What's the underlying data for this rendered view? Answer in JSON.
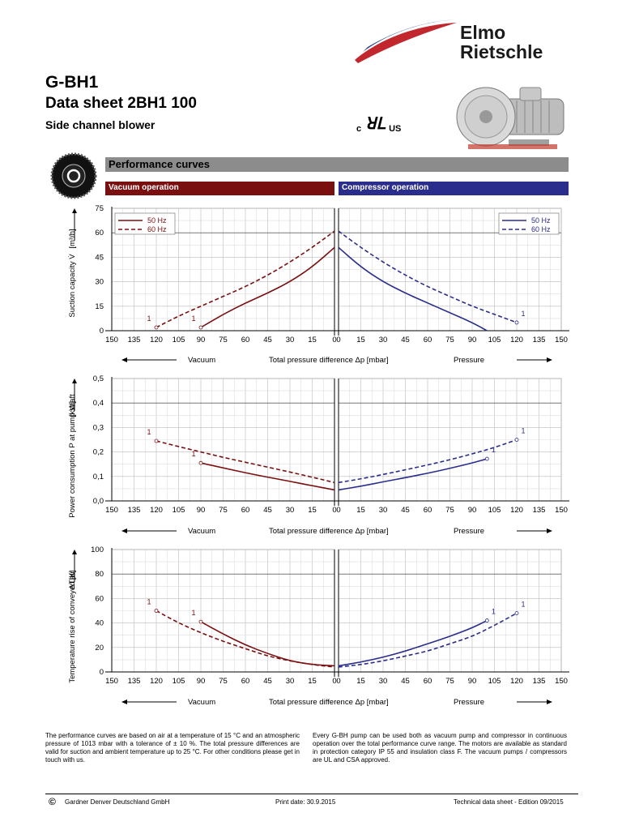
{
  "header": {
    "code": "G-BH1",
    "datasheet": "Data sheet 2BH1 100",
    "product": "Side channel blower",
    "brand_line1": "Elmo",
    "brand_line2": "Rietschle",
    "cert_prefix": "c",
    "cert_suffix": "US"
  },
  "section": {
    "title": "Performance curves",
    "vacuum_label": "Vacuum operation",
    "compressor_label": "Compressor operation"
  },
  "colors": {
    "vacuum": "#7a0f10",
    "compressor": "#2b2d8c",
    "band": "#8c8c8c"
  },
  "chart_data": [
    {
      "type": "line",
      "title": "Suction capacity",
      "ylabel": "Suction capacity V̇   [m³/h]",
      "xlabel": "Total pressure difference Δp [mbar]",
      "left_label": "Vacuum",
      "right_label": "Pressure",
      "ylim": [
        0,
        75
      ],
      "yticks": [
        "0",
        "15",
        "30",
        "45",
        "60",
        "75"
      ],
      "xticks_left": [
        "150",
        "135",
        "120",
        "105",
        "90",
        "75",
        "60",
        "45",
        "30",
        "15",
        "0"
      ],
      "xticks_right": [
        "0",
        "15",
        "30",
        "45",
        "60",
        "75",
        "90",
        "105",
        "120",
        "135",
        "150"
      ],
      "legend_position": "top",
      "vacuum_series": [
        {
          "name": "50 Hz",
          "style": "solid",
          "x": [
            90,
            75,
            60,
            45,
            30,
            15,
            0
          ],
          "y": [
            2,
            10,
            17,
            23,
            30,
            39,
            51
          ]
        },
        {
          "name": "60 Hz",
          "style": "dashed",
          "x": [
            120,
            105,
            90,
            75,
            60,
            45,
            30,
            15,
            0
          ],
          "y": [
            2,
            9,
            15,
            21,
            27,
            34,
            42,
            51,
            61
          ]
        }
      ],
      "compressor_series": [
        {
          "name": "50 Hz",
          "style": "solid",
          "x": [
            0,
            15,
            30,
            45,
            60,
            75,
            90,
            100
          ],
          "y": [
            51,
            39,
            30,
            23,
            17,
            11,
            5,
            0
          ]
        },
        {
          "name": "60 Hz",
          "style": "dashed",
          "x": [
            0,
            15,
            30,
            45,
            60,
            75,
            90,
            105,
            120
          ],
          "y": [
            61,
            51,
            42,
            34,
            27,
            21,
            15,
            10,
            5
          ]
        }
      ],
      "markers": [
        {
          "side": "vacuum",
          "x": 120,
          "y": 2,
          "label": "1"
        },
        {
          "side": "vacuum",
          "x": 90,
          "y": 2,
          "label": "1"
        },
        {
          "side": "compressor",
          "x": 120,
          "y": 5,
          "label": "1"
        }
      ]
    },
    {
      "type": "line",
      "title": "Power consumption",
      "ylabel": "Power consumption P at pump shaft   [kW]",
      "xlabel": "Total pressure difference Δp [mbar]",
      "left_label": "Vacuum",
      "right_label": "Pressure",
      "ylim": [
        0,
        0.5
      ],
      "yticks": [
        "0,0",
        "0,1",
        "0,2",
        "0,3",
        "0,4",
        "0,5"
      ],
      "xticks_left": [
        "150",
        "135",
        "120",
        "105",
        "90",
        "75",
        "60",
        "45",
        "30",
        "15",
        "0"
      ],
      "xticks_right": [
        "0",
        "15",
        "30",
        "45",
        "60",
        "75",
        "90",
        "105",
        "120",
        "135",
        "150"
      ],
      "vacuum_series": [
        {
          "name": "50 Hz",
          "style": "solid",
          "x": [
            90,
            75,
            60,
            45,
            30,
            15,
            0
          ],
          "y": [
            0.155,
            0.135,
            0.115,
            0.097,
            0.08,
            0.062,
            0.045
          ]
        },
        {
          "name": "60 Hz",
          "style": "dashed",
          "x": [
            120,
            105,
            90,
            75,
            60,
            45,
            30,
            15,
            0
          ],
          "y": [
            0.245,
            0.222,
            0.2,
            0.178,
            0.158,
            0.138,
            0.118,
            0.097,
            0.075
          ]
        }
      ],
      "compressor_series": [
        {
          "name": "50 Hz",
          "style": "solid",
          "x": [
            0,
            15,
            30,
            45,
            60,
            75,
            90,
            100
          ],
          "y": [
            0.045,
            0.06,
            0.078,
            0.095,
            0.113,
            0.133,
            0.155,
            0.172
          ]
        },
        {
          "name": "60 Hz",
          "style": "dashed",
          "x": [
            0,
            15,
            30,
            45,
            60,
            75,
            90,
            105,
            120
          ],
          "y": [
            0.075,
            0.09,
            0.108,
            0.127,
            0.147,
            0.168,
            0.192,
            0.218,
            0.25
          ]
        }
      ],
      "markers": [
        {
          "side": "vacuum",
          "x": 120,
          "y": 0.245,
          "label": "1"
        },
        {
          "side": "vacuum",
          "x": 90,
          "y": 0.155,
          "label": "1"
        },
        {
          "side": "compressor",
          "x": 100,
          "y": 0.172,
          "label": "1"
        },
        {
          "side": "compressor",
          "x": 120,
          "y": 0.25,
          "label": "1"
        }
      ]
    },
    {
      "type": "line",
      "title": "Temperature rise",
      "ylabel": "Temperature rise of conveyed air   ΔT[K]",
      "xlabel": "Total pressure difference Δp [mbar]",
      "left_label": "Vacuum",
      "right_label": "Pressure",
      "ylim": [
        0,
        100
      ],
      "yticks": [
        "0",
        "20",
        "40",
        "60",
        "80",
        "100"
      ],
      "xticks_left": [
        "150",
        "135",
        "120",
        "105",
        "90",
        "75",
        "60",
        "45",
        "30",
        "15",
        "0"
      ],
      "xticks_right": [
        "0",
        "15",
        "30",
        "45",
        "60",
        "75",
        "90",
        "105",
        "120",
        "135",
        "150"
      ],
      "vacuum_series": [
        {
          "name": "50 Hz",
          "style": "solid",
          "x": [
            90,
            75,
            60,
            45,
            30,
            15,
            0
          ],
          "y": [
            41,
            31,
            22,
            15,
            9,
            6,
            5
          ]
        },
        {
          "name": "60 Hz",
          "style": "dashed",
          "x": [
            120,
            105,
            90,
            75,
            60,
            45,
            30,
            15,
            0
          ],
          "y": [
            50,
            40,
            32,
            25,
            19,
            13,
            9,
            6,
            4
          ]
        }
      ],
      "compressor_series": [
        {
          "name": "50 Hz",
          "style": "solid",
          "x": [
            0,
            15,
            30,
            45,
            60,
            75,
            90,
            100
          ],
          "y": [
            5,
            8,
            12,
            17,
            23,
            29,
            36,
            42
          ]
        },
        {
          "name": "60 Hz",
          "style": "dashed",
          "x": [
            0,
            15,
            30,
            45,
            60,
            75,
            90,
            105,
            120
          ],
          "y": [
            4,
            6,
            9,
            13,
            17,
            23,
            29,
            38,
            48
          ]
        }
      ],
      "markers": [
        {
          "side": "vacuum",
          "x": 120,
          "y": 50,
          "label": "1"
        },
        {
          "side": "vacuum",
          "x": 90,
          "y": 41,
          "label": "1"
        },
        {
          "side": "compressor",
          "x": 100,
          "y": 42,
          "label": "1"
        },
        {
          "side": "compressor",
          "x": 120,
          "y": 48,
          "label": "1"
        }
      ]
    }
  ],
  "notes": {
    "left": "The performance curves are based on air at a temperature of 15 °C and an atmospheric pressure of 1013 mbar with a tolerance of ± 10 %. The total pressure differences are valid for suction and ambient temperature up to 25 °C. For other conditions please get in touch with us.",
    "right": "Every G-BH pump can be used both as vacuum pump and compressor in continuous operation over the total performance curve range. The motors are available as standard in protection category IP 55 and insulation class F. The vacuum pumps / compressors are UL and CSA approved."
  },
  "footer": {
    "copyright_symbol": "©",
    "company": "Gardner Denver Deutschland GmbH",
    "print_date": "Print date: 30.9.2015",
    "edition": "Technical data sheet - Edition 09/2015"
  }
}
